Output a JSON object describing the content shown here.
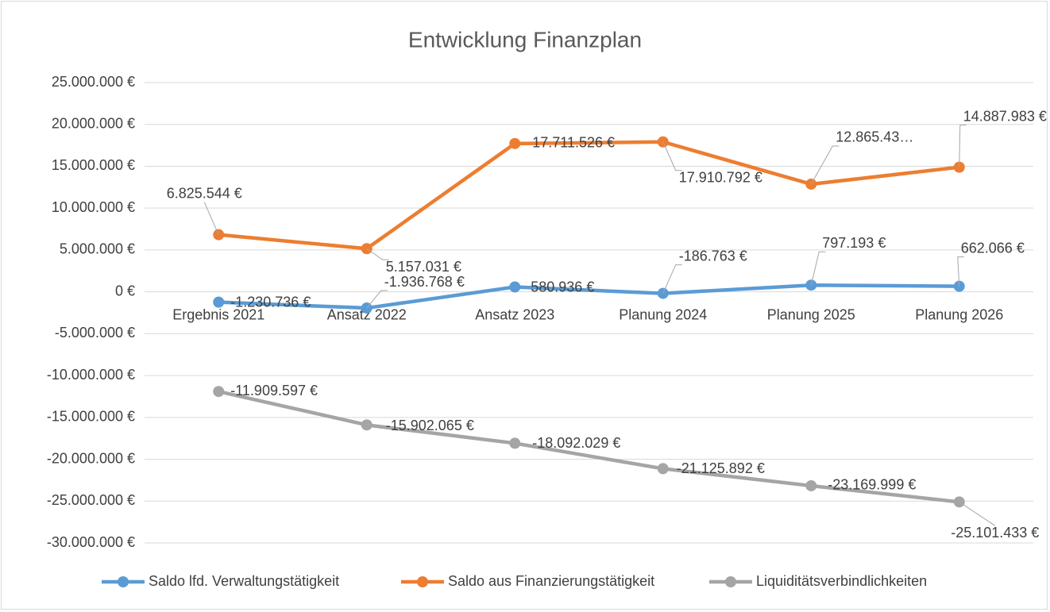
{
  "chart_data": {
    "type": "line",
    "title": "Entwicklung Finanzplan",
    "categories": [
      "Ergebnis 2021",
      "Ansatz 2022",
      "Ansatz 2023",
      "Planung 2024",
      "Planung 2025",
      "Planung 2026"
    ],
    "series": [
      {
        "name": "Saldo lfd. Verwaltungstätigkeit",
        "color": "#5b9bd5",
        "values": [
          -1230736,
          -1936768,
          580936,
          -186763,
          797193,
          662066
        ],
        "value_labels": [
          "-1.230.736 €",
          "-1.936.768 €",
          "580.936 €",
          "-186.763 €",
          "797.193 €",
          "662.066 €"
        ]
      },
      {
        "name": "Saldo aus Finanzierungstätigkeit",
        "color": "#ed7d31",
        "values": [
          6825544,
          5157031,
          17711526,
          17910792,
          12865430,
          14887983
        ],
        "value_labels": [
          "6.825.544 €",
          "5.157.031 €",
          "17.711.526 €",
          "17.910.792 €",
          "12.865.43…",
          "14.887.983 €"
        ]
      },
      {
        "name": "Liquiditätsverbindlichkeiten",
        "color": "#a5a5a5",
        "values": [
          -11909597,
          -15902065,
          -18092029,
          -21125892,
          -23169999,
          -25101433
        ],
        "value_labels": [
          "-11.909.597 €",
          "-15.902.065 €",
          "-18.092.029 €",
          "-21.125.892 €",
          "-23.169.999 €",
          "-25.101.433 €"
        ]
      }
    ],
    "ylim": [
      -30000000,
      25000000
    ],
    "yticks": [
      {
        "value": 25000000,
        "label": "25.000.000 €"
      },
      {
        "value": 20000000,
        "label": "20.000.000 €"
      },
      {
        "value": 15000000,
        "label": "15.000.000 €"
      },
      {
        "value": 10000000,
        "label": "10.000.000 €"
      },
      {
        "value": 5000000,
        "label": "5.000.000 €"
      },
      {
        "value": 0,
        "label": "0 €"
      },
      {
        "value": -5000000,
        "label": "-5.000.000 €"
      },
      {
        "value": -10000000,
        "label": "-10.000.000 €"
      },
      {
        "value": -15000000,
        "label": "-15.000.000 €"
      },
      {
        "value": -20000000,
        "label": "-20.000.000 €"
      },
      {
        "value": -25000000,
        "label": "-25.000.000 €"
      },
      {
        "value": -30000000,
        "label": "-30.000.000 €"
      }
    ],
    "grid": true,
    "legend": "bottom"
  }
}
